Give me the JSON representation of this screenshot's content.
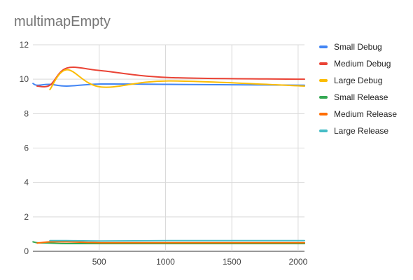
{
  "chart_data": {
    "type": "line",
    "title": "multimapEmpty",
    "xlabel": "",
    "ylabel": "",
    "xlim": [
      0,
      2048
    ],
    "ylim": [
      0,
      12
    ],
    "x_ticks": [
      500,
      1000,
      1500,
      2000
    ],
    "y_ticks": [
      0,
      2,
      4,
      6,
      8,
      10,
      12
    ],
    "grid": true,
    "legend_position": "right",
    "series": [
      {
        "name": "Small Debug",
        "color": "#4285f4",
        "x": [
          1,
          32,
          128,
          256,
          512,
          1024,
          2048
        ],
        "y": [
          9.75,
          9.65,
          9.7,
          9.6,
          9.72,
          9.7,
          9.65
        ]
      },
      {
        "name": "Medium Debug",
        "color": "#ea4335",
        "x": [
          32,
          128,
          256,
          512,
          1024,
          2048
        ],
        "y": [
          9.6,
          9.65,
          10.65,
          10.5,
          10.1,
          10.0
        ]
      },
      {
        "name": "Large Debug",
        "color": "#fbbc04",
        "x": [
          128,
          256,
          512,
          1024,
          2048
        ],
        "y": [
          9.4,
          10.55,
          9.55,
          9.9,
          9.6
        ]
      },
      {
        "name": "Small Release",
        "color": "#34a853",
        "x": [
          1,
          32,
          128,
          256,
          512,
          1024,
          2048
        ],
        "y": [
          0.55,
          0.5,
          0.48,
          0.45,
          0.45,
          0.45,
          0.45
        ]
      },
      {
        "name": "Medium Release",
        "color": "#ff6d01",
        "x": [
          32,
          128,
          256,
          512,
          1024,
          2048
        ],
        "y": [
          0.48,
          0.55,
          0.55,
          0.5,
          0.5,
          0.5
        ]
      },
      {
        "name": "Large Release",
        "color": "#46bdc6",
        "x": [
          128,
          256,
          512,
          1024,
          2048
        ],
        "y": [
          0.62,
          0.62,
          0.6,
          0.62,
          0.62
        ]
      }
    ]
  }
}
